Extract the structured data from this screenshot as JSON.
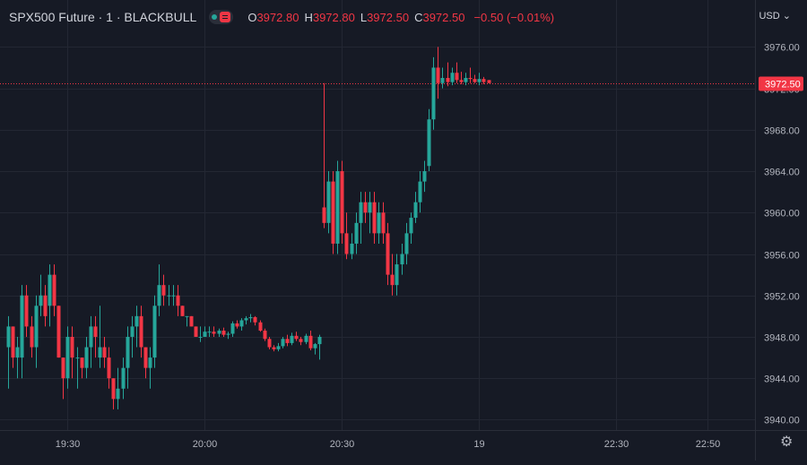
{
  "header": {
    "symbol": "SPX500 Future · 1 · BLACKBULL",
    "open_label": "O",
    "open": "3972.80",
    "high_label": "H",
    "high": "3972.80",
    "low_label": "L",
    "low": "3972.50",
    "close_label": "C",
    "close": "3972.50",
    "change": "−0.50 (−0.01%)"
  },
  "currency": "USD",
  "icons": {
    "status": "market-status-icon",
    "settings": "gear-icon",
    "currency_caret": "chevron-down-icon"
  },
  "colors": {
    "background": "#161a25",
    "up": "#26a69a",
    "down": "#f23645",
    "grid": "#232733",
    "text": "#b2b5be"
  },
  "chart_data": {
    "type": "candlestick",
    "grid": true,
    "ylim": [
      3939,
      3977.5
    ],
    "y_ticks": [
      "3940.00",
      "3944.00",
      "3948.00",
      "3952.00",
      "3956.00",
      "3960.00",
      "3964.00",
      "3968.00",
      "3972.00",
      "3976.00"
    ],
    "x_ticks": [
      {
        "label": "19:30",
        "index": 13
      },
      {
        "label": "20:00",
        "index": 43
      },
      {
        "label": "20:30",
        "index": 73
      },
      {
        "label": "19",
        "index": 103
      },
      {
        "label": "22:30",
        "index": 133
      },
      {
        "label": "22:50",
        "index": 153
      }
    ],
    "last_price": "3972.50",
    "candles": [
      [
        3947,
        3950,
        3943,
        3949
      ],
      [
        3949,
        3949,
        3945,
        3946
      ],
      [
        3946,
        3948,
        3944,
        3947
      ],
      [
        3946,
        3953,
        3944,
        3952
      ],
      [
        3952,
        3953,
        3948,
        3949
      ],
      [
        3949,
        3950,
        3946,
        3947
      ],
      [
        3947,
        3952,
        3945,
        3951
      ],
      [
        3951,
        3954,
        3950,
        3952
      ],
      [
        3952,
        3953,
        3949,
        3950
      ],
      [
        3951,
        3955,
        3949,
        3954
      ],
      [
        3954,
        3955,
        3950,
        3951
      ],
      [
        3951,
        3951,
        3946,
        3946
      ],
      [
        3946,
        3946,
        3942,
        3944
      ],
      [
        3944,
        3949,
        3943,
        3948
      ],
      [
        3948,
        3949,
        3944,
        3946
      ],
      [
        3946,
        3947,
        3943,
        3946
      ],
      [
        3946,
        3946,
        3944,
        3945
      ],
      [
        3945,
        3948,
        3944,
        3947
      ],
      [
        3947,
        3950,
        3945,
        3949
      ],
      [
        3949,
        3950,
        3946,
        3948
      ],
      [
        3946,
        3951,
        3945,
        3947
      ],
      [
        3947,
        3948,
        3945,
        3946
      ],
      [
        3946,
        3947,
        3943,
        3944
      ],
      [
        3944,
        3944,
        3941,
        3942
      ],
      [
        3942,
        3945,
        3941,
        3943
      ],
      [
        3943,
        3946,
        3942,
        3945
      ],
      [
        3945,
        3949,
        3943,
        3948
      ],
      [
        3948,
        3950,
        3946,
        3949
      ],
      [
        3949,
        3951,
        3947,
        3950
      ],
      [
        3950,
        3951,
        3946,
        3947
      ],
      [
        3947,
        3947,
        3944,
        3945
      ],
      [
        3945,
        3947,
        3943,
        3946
      ],
      [
        3946,
        3952,
        3945,
        3951
      ],
      [
        3951,
        3955,
        3950,
        3953
      ],
      [
        3953,
        3954,
        3951,
        3952
      ],
      [
        3952,
        3953,
        3951,
        3952
      ],
      [
        3952,
        3953,
        3951,
        3952
      ],
      [
        3952,
        3953,
        3950,
        3951
      ],
      [
        3951,
        3951,
        3950,
        3950
      ],
      [
        3950,
        3950,
        3949,
        3950
      ],
      [
        3950,
        3950,
        3949,
        3949
      ],
      [
        3949,
        3949,
        3948,
        3948
      ],
      [
        3948,
        3949,
        3947.5,
        3948
      ],
      [
        3948,
        3949,
        3948,
        3948.5
      ],
      [
        3948.5,
        3949,
        3948,
        3948.5
      ],
      [
        3948.5,
        3949,
        3948,
        3948.3
      ],
      [
        3948.3,
        3948.8,
        3948,
        3948.6
      ],
      [
        3948.6,
        3948.9,
        3948,
        3948.2
      ],
      [
        3948.2,
        3948.5,
        3947.8,
        3948.3
      ],
      [
        3948.3,
        3949.5,
        3948,
        3949.3
      ],
      [
        3949.3,
        3949.6,
        3948.8,
        3949
      ],
      [
        3949,
        3949.8,
        3948.6,
        3949.6
      ],
      [
        3949.6,
        3950,
        3949.2,
        3949.8
      ],
      [
        3949.8,
        3950.2,
        3949.4,
        3949.9
      ],
      [
        3949.9,
        3950,
        3949.1,
        3949.4
      ],
      [
        3949.4,
        3949.6,
        3948.5,
        3948.6
      ],
      [
        3948.6,
        3948.8,
        3947.6,
        3947.8
      ],
      [
        3947.8,
        3948,
        3946.8,
        3947
      ],
      [
        3947,
        3947.2,
        3946.6,
        3946.8
      ],
      [
        3946.8,
        3947.4,
        3946.6,
        3947.1
      ],
      [
        3947.1,
        3948,
        3946.9,
        3947.8
      ],
      [
        3947.8,
        3948.2,
        3947.1,
        3947.4
      ],
      [
        3947.4,
        3948.4,
        3947.2,
        3948.1
      ],
      [
        3948.1,
        3948.5,
        3947.6,
        3947.8
      ],
      [
        3947.8,
        3948,
        3947.2,
        3947.5
      ],
      [
        3947.5,
        3948.3,
        3947.3,
        3948.1
      ],
      [
        3948.1,
        3948.6,
        3946.7,
        3946.9
      ],
      [
        3946.9,
        3947.4,
        3946.3,
        3947.3
      ],
      [
        3947.3,
        3948.2,
        3945.8,
        3948
      ],
      [
        3960.5,
        3972.5,
        3958.5,
        3959
      ],
      [
        3959,
        3964,
        3958,
        3963
      ],
      [
        3963,
        3964,
        3956,
        3957
      ],
      [
        3957,
        3965,
        3956,
        3964
      ],
      [
        3964,
        3965,
        3957,
        3958
      ],
      [
        3958,
        3960,
        3955.5,
        3956
      ],
      [
        3956,
        3958,
        3955.5,
        3957
      ],
      [
        3957,
        3960,
        3956,
        3959
      ],
      [
        3959,
        3962,
        3957,
        3961
      ],
      [
        3961,
        3962,
        3959,
        3960
      ],
      [
        3960,
        3962,
        3958,
        3961
      ],
      [
        3961,
        3962,
        3957,
        3958
      ],
      [
        3958,
        3961,
        3957,
        3960
      ],
      [
        3960,
        3961,
        3957,
        3958
      ],
      [
        3958,
        3959,
        3953,
        3954
      ],
      [
        3954,
        3956,
        3952,
        3953
      ],
      [
        3953,
        3956,
        3952,
        3955
      ],
      [
        3955,
        3957,
        3954,
        3956
      ],
      [
        3956,
        3959,
        3955,
        3958
      ],
      [
        3958,
        3960,
        3957,
        3959.5
      ],
      [
        3959.5,
        3962,
        3959,
        3961
      ],
      [
        3961,
        3964,
        3960,
        3963
      ],
      [
        3963,
        3965,
        3962,
        3964
      ],
      [
        3964.5,
        3970,
        3964,
        3969
      ],
      [
        3969,
        3975,
        3968,
        3974
      ],
      [
        3974,
        3976,
        3971,
        3972.5
      ],
      [
        3972.5,
        3974,
        3972,
        3973
      ],
      [
        3973,
        3974.5,
        3972.2,
        3972.6
      ],
      [
        3972.6,
        3974,
        3972.3,
        3973.5
      ],
      [
        3973.5,
        3974.5,
        3972.5,
        3972.8
      ],
      [
        3972.8,
        3973.6,
        3972.4,
        3972.6
      ],
      [
        3972.6,
        3973.5,
        3972.3,
        3973
      ],
      [
        3973,
        3974,
        3972.5,
        3972.9
      ],
      [
        3972.9,
        3973.3,
        3972.5,
        3972.6
      ],
      [
        3972.6,
        3973.5,
        3972.3,
        3972.9
      ],
      [
        3972.9,
        3973.1,
        3972.4,
        3972.6
      ],
      [
        3972.8,
        3972.8,
        3972.5,
        3972.5
      ]
    ]
  }
}
